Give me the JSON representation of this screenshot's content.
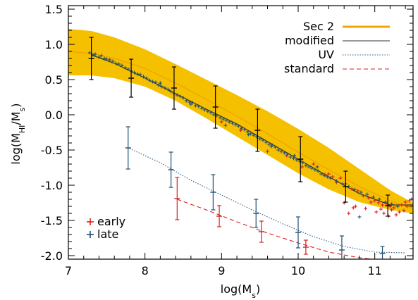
{
  "chart_data": {
    "type": "scatter",
    "xlabel": "log(M_s)",
    "ylabel": "log(M_HI/M_s)",
    "xlim": [
      7,
      11.5
    ],
    "ylim": [
      -2.05,
      1.55
    ],
    "xticks": [
      7,
      8,
      9,
      10,
      11
    ],
    "yticks": [
      -2.0,
      -1.5,
      -1.0,
      -0.5,
      0.0,
      0.5,
      1.0,
      1.5
    ],
    "xtick_labels": [
      "7",
      "8",
      "9",
      "10",
      "11"
    ],
    "ytick_labels": [
      "-2.0",
      "-1.5",
      "-1.0",
      "-0.5",
      "0.0",
      "0.5",
      "1.0",
      "1.5"
    ],
    "grid": false,
    "legend_lines": {
      "placement": "top-right",
      "entries": [
        {
          "label": "Sec 2",
          "color": "#f5a500",
          "style": "solid-thick"
        },
        {
          "label": "modified",
          "color": "#333333",
          "style": "solid"
        },
        {
          "label": "UV",
          "color": "#2c5f84",
          "style": "dotted"
        },
        {
          "label": "standard",
          "color": "#d62020",
          "style": "dashed"
        }
      ]
    },
    "legend_points": {
      "placement": "bottom-left",
      "entries": [
        {
          "label": "early",
          "color": "#d62020"
        },
        {
          "label": "late",
          "color": "#1f4f73"
        }
      ]
    },
    "band": {
      "color": "#f5c000",
      "x": [
        7.0,
        7.3,
        7.6,
        8.0,
        8.4,
        8.8,
        9.2,
        9.6,
        10.0,
        10.4,
        10.8,
        11.2,
        11.5
      ],
      "upper": [
        1.22,
        1.19,
        1.1,
        0.93,
        0.72,
        0.5,
        0.28,
        0.05,
        -0.2,
        -0.47,
        -0.77,
        -1.07,
        -1.25
      ],
      "lower": [
        0.56,
        0.56,
        0.52,
        0.4,
        0.2,
        -0.05,
        -0.31,
        -0.57,
        -0.83,
        -1.06,
        -1.24,
        -1.35,
        -1.4
      ]
    },
    "series": [
      {
        "name": "Sec 2",
        "kind": "line",
        "color": "#f0a000",
        "x": [
          7.0,
          7.3,
          7.6,
          8.0,
          8.4,
          8.8,
          9.2,
          9.6,
          10.0,
          10.4,
          10.8,
          11.2,
          11.5
        ],
        "y": [
          0.9,
          0.87,
          0.8,
          0.66,
          0.45,
          0.22,
          -0.02,
          -0.27,
          -0.53,
          -0.78,
          -1.02,
          -1.22,
          -1.33
        ]
      },
      {
        "name": "modified",
        "kind": "line",
        "color": "#333333",
        "x": [
          7.3,
          7.6,
          8.0,
          8.4,
          8.8,
          9.2,
          9.6,
          10.0,
          10.4,
          10.8,
          11.2,
          11.5
        ],
        "y": [
          0.85,
          0.73,
          0.52,
          0.3,
          0.08,
          -0.13,
          -0.38,
          -0.63,
          -0.88,
          -1.12,
          -1.28,
          -1.28
        ]
      },
      {
        "name": "UV",
        "kind": "line",
        "color": "#2c5f84",
        "x": [
          7.8,
          8.2,
          8.6,
          9.0,
          9.4,
          9.8,
          10.2,
          10.6,
          11.0,
          11.4
        ],
        "y": [
          -0.48,
          -0.68,
          -0.93,
          -1.14,
          -1.35,
          -1.55,
          -1.73,
          -1.87,
          -1.95,
          -1.96
        ]
      },
      {
        "name": "standard",
        "kind": "line",
        "color": "#d62020",
        "x": [
          8.42,
          8.8,
          9.2,
          9.6,
          10.0,
          10.4,
          10.8,
          11.2,
          11.5
        ],
        "y": [
          -1.2,
          -1.35,
          -1.52,
          -1.68,
          -1.82,
          -1.95,
          -2.03,
          -2.08,
          -2.1
        ]
      }
    ],
    "errorbars": [
      {
        "color": "#000000",
        "points": [
          {
            "x": 7.3,
            "y": 0.8,
            "err": 0.3
          },
          {
            "x": 7.82,
            "y": 0.52,
            "err": 0.27
          },
          {
            "x": 8.38,
            "y": 0.38,
            "err": 0.3
          },
          {
            "x": 8.92,
            "y": 0.11,
            "err": 0.3
          },
          {
            "x": 9.47,
            "y": -0.22,
            "err": 0.3
          },
          {
            "x": 10.03,
            "y": -0.63,
            "err": 0.32
          },
          {
            "x": 10.62,
            "y": -1.02,
            "err": 0.22
          },
          {
            "x": 11.17,
            "y": -1.29,
            "err": 0.15
          }
        ]
      },
      {
        "color": "#1f4f73",
        "points": [
          {
            "x": 7.78,
            "y": -0.47,
            "err": 0.3
          },
          {
            "x": 8.34,
            "y": -0.78,
            "err": 0.25
          },
          {
            "x": 8.89,
            "y": -1.1,
            "err": 0.25
          },
          {
            "x": 9.45,
            "y": -1.4,
            "err": 0.2
          },
          {
            "x": 10.0,
            "y": -1.67,
            "err": 0.22
          },
          {
            "x": 10.57,
            "y": -1.92,
            "err": 0.2
          },
          {
            "x": 11.1,
            "y": -1.97,
            "err": 0.1
          }
        ]
      },
      {
        "color": "#d62020",
        "points": [
          {
            "x": 8.42,
            "y": -1.19,
            "err": 0.3
          },
          {
            "x": 8.97,
            "y": -1.44,
            "err": 0.15
          },
          {
            "x": 9.52,
            "y": -1.66,
            "err": 0.15
          },
          {
            "x": 10.1,
            "y": -1.88,
            "err": 0.1
          }
        ]
      }
    ],
    "scatter_late": {
      "name": "late",
      "color": "#1f4f73",
      "x": [
        7.28,
        7.32,
        7.35,
        7.4,
        7.43,
        7.47,
        7.5,
        7.54,
        7.58,
        7.62,
        7.66,
        7.7,
        7.74,
        7.78,
        7.82,
        7.86,
        7.9,
        7.94,
        7.98,
        8.02,
        8.06,
        8.1,
        8.14,
        8.18,
        8.22,
        8.26,
        8.3,
        8.34,
        8.38,
        8.42,
        8.46,
        8.5,
        8.54,
        8.58,
        8.62,
        8.66,
        8.7,
        8.74,
        8.78,
        8.82,
        8.86,
        8.9,
        8.94,
        8.98,
        9.02,
        9.06,
        9.1,
        9.14,
        9.18,
        9.22,
        9.26,
        9.3,
        9.34,
        9.38,
        9.42,
        9.46,
        9.5,
        9.54,
        9.58,
        9.62,
        9.66,
        9.7,
        9.74,
        9.78,
        9.82,
        9.86,
        9.9,
        9.94,
        9.98,
        10.02,
        10.06,
        10.1,
        10.14,
        10.18,
        10.22,
        10.26,
        10.3,
        10.34,
        10.38,
        10.42,
        10.5,
        10.58,
        10.66,
        10.74,
        10.82,
        10.9,
        10.98,
        11.06,
        11.14,
        11.22,
        11.3,
        10.8,
        8.2,
        8.6,
        9.05,
        9.35,
        9.65,
        9.95,
        10.25
      ],
      "y": [
        0.88,
        0.85,
        0.86,
        0.82,
        0.84,
        0.8,
        0.79,
        0.78,
        0.76,
        0.73,
        0.72,
        0.7,
        0.67,
        0.65,
        0.62,
        0.6,
        0.58,
        0.57,
        0.54,
        0.52,
        0.49,
        0.47,
        0.46,
        0.42,
        0.4,
        0.38,
        0.36,
        0.33,
        0.3,
        0.28,
        0.26,
        0.24,
        0.2,
        0.18,
        0.17,
        0.13,
        0.12,
        0.09,
        0.07,
        0.05,
        0.03,
        0.0,
        -0.01,
        -0.04,
        -0.06,
        -0.08,
        -0.1,
        -0.12,
        -0.14,
        -0.16,
        -0.19,
        -0.21,
        -0.24,
        -0.27,
        -0.29,
        -0.31,
        -0.34,
        -0.36,
        -0.39,
        -0.42,
        -0.43,
        -0.46,
        -0.5,
        -0.52,
        -0.54,
        -0.56,
        -0.6,
        -0.62,
        -0.64,
        -0.66,
        -0.68,
        -0.72,
        -0.74,
        -0.76,
        -0.78,
        -0.8,
        -0.84,
        -0.86,
        -0.88,
        -0.9,
        -0.94,
        -0.98,
        -1.02,
        -1.06,
        -1.1,
        -1.13,
        -1.17,
        -1.2,
        -1.24,
        -1.27,
        -1.3,
        -1.45,
        0.45,
        0.15,
        -0.15,
        -0.28,
        -0.45,
        -0.58,
        -0.74
      ]
    },
    "scatter_early": {
      "name": "early",
      "color": "#d62020",
      "x": [
        9.0,
        9.25,
        9.6,
        9.85,
        10.05,
        10.2,
        10.35,
        10.45,
        10.55,
        10.62,
        10.7,
        10.78,
        10.85,
        10.92,
        11.0,
        11.05,
        11.1,
        11.15,
        11.2,
        11.25,
        11.3,
        11.35,
        11.4,
        11.45,
        11.48,
        10.6,
        10.75,
        10.88,
        11.02,
        11.12,
        11.22,
        11.32,
        11.42,
        10.66,
        10.72,
        10.95,
        11.08,
        11.18,
        11.28,
        11.38,
        10.4,
        10.5
      ],
      "y": [
        -0.1,
        -0.22,
        -0.52,
        -0.58,
        -0.74,
        -0.7,
        -0.85,
        -0.88,
        -0.9,
        -0.98,
        -1.05,
        -1.08,
        -1.15,
        -1.18,
        -1.22,
        -1.25,
        -1.28,
        -1.26,
        -1.3,
        -1.32,
        -1.3,
        -1.28,
        -1.24,
        -1.22,
        -1.2,
        -1.25,
        -1.3,
        -1.33,
        -1.38,
        -1.4,
        -1.35,
        -1.38,
        -1.3,
        -1.4,
        -1.32,
        -1.24,
        -1.34,
        -1.44,
        -1.42,
        -1.36,
        -0.84,
        -0.96
      ]
    }
  }
}
